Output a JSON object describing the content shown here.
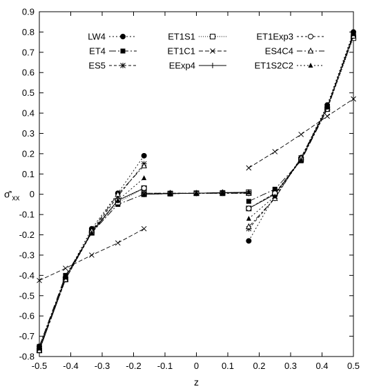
{
  "chart_data": {
    "type": "line",
    "title": "",
    "xlabel": "z",
    "ylabel": "σ̄'xx",
    "ylabel_main": "σ̄'",
    "ylabel_sub": "xx",
    "xlim": [
      -0.5,
      0.5
    ],
    "ylim": [
      -0.8,
      0.9
    ],
    "xticks": [
      "-0.5",
      "-0.4",
      "-0.3",
      "-0.2",
      "-0.1",
      "0",
      "0.1",
      "0.2",
      "0.3",
      "0.4",
      "0.5"
    ],
    "yticks": [
      "-0.8",
      "-0.7",
      "-0.6",
      "-0.5",
      "-0.4",
      "-0.3",
      "-0.2",
      "-0.1",
      "0",
      "0.1",
      "0.2",
      "0.3",
      "0.4",
      "0.5",
      "0.6",
      "0.7",
      "0.8",
      "0.9"
    ],
    "grid": false,
    "legend_position": "top",
    "series": [
      {
        "name": "LW4",
        "marker": "filled-circle",
        "dash": "2,3",
        "segments": [
          [
            [
              -0.5,
              -0.75
            ],
            [
              -0.4167,
              -0.41
            ],
            [
              -0.3333,
              -0.17
            ],
            [
              -0.25,
              0.005
            ],
            [
              -0.1667,
              0.19
            ]
          ],
          [
            [
              -0.1667,
              0.0
            ],
            [
              -0.0833,
              0.005
            ],
            [
              0,
              0.005
            ],
            [
              0.0833,
              0.008
            ],
            [
              0.1667,
              0.01
            ]
          ],
          [
            [
              0.1667,
              -0.23
            ],
            [
              0.25,
              -0.005
            ],
            [
              0.3333,
              0.18
            ],
            [
              0.4167,
              0.44
            ],
            [
              0.5,
              0.8
            ]
          ]
        ]
      },
      {
        "name": "ET4",
        "marker": "filled-square",
        "dash": "10,3,2,3",
        "segments": [
          [
            [
              -0.5,
              -0.75
            ],
            [
              -0.4167,
              -0.4
            ],
            [
              -0.3333,
              -0.19
            ],
            [
              -0.25,
              -0.05
            ],
            [
              -0.1667,
              0.0
            ]
          ],
          [
            [
              -0.1667,
              0.0
            ],
            [
              -0.0833,
              0.003
            ],
            [
              0,
              0.005
            ],
            [
              0.0833,
              0.005
            ],
            [
              0.1667,
              0.005
            ]
          ],
          [
            [
              0.1667,
              -0.035
            ],
            [
              0.25,
              0.025
            ],
            [
              0.3333,
              0.165
            ],
            [
              0.4167,
              0.42
            ],
            [
              0.5,
              0.79
            ]
          ]
        ]
      },
      {
        "name": "ES5",
        "marker": "star",
        "dash": "4,3",
        "segments": [
          [
            [
              -0.5,
              -0.77
            ],
            [
              -0.4167,
              -0.42
            ],
            [
              -0.3333,
              -0.185
            ],
            [
              -0.25,
              -0.01
            ],
            [
              -0.1667,
              0.15
            ]
          ],
          [
            [
              -0.1667,
              0.005
            ],
            [
              -0.0833,
              0.005
            ],
            [
              0,
              0.005
            ],
            [
              0.0833,
              0.008
            ],
            [
              0.1667,
              0.005
            ]
          ],
          [
            [
              0.1667,
              -0.17
            ],
            [
              0.25,
              -0.02
            ],
            [
              0.3333,
              0.18
            ],
            [
              0.4167,
              0.43
            ],
            [
              0.5,
              0.78
            ]
          ]
        ]
      },
      {
        "name": "ET1S1",
        "marker": "open-square",
        "dash": "1,2",
        "segments": [
          [
            [
              -0.5,
              -0.77
            ],
            [
              -0.4167,
              -0.42
            ],
            [
              -0.3333,
              -0.19
            ],
            [
              -0.25,
              -0.04
            ],
            [
              -0.1667,
              0.03
            ]
          ],
          [
            [
              -0.1667,
              0.0
            ],
            [
              -0.0833,
              0.003
            ],
            [
              0,
              0.005
            ],
            [
              0.0833,
              0.005
            ],
            [
              0.1667,
              0.01
            ]
          ],
          [
            [
              0.1667,
              -0.07
            ],
            [
              0.25,
              0.005
            ],
            [
              0.3333,
              0.17
            ],
            [
              0.4167,
              0.42
            ],
            [
              0.5,
              0.77
            ]
          ]
        ]
      },
      {
        "name": "ET1C1",
        "marker": "x",
        "dash": "6,3",
        "segments": [
          [
            [
              -0.5,
              -0.425
            ],
            [
              -0.4167,
              -0.365
            ],
            [
              -0.3333,
              -0.3
            ],
            [
              -0.25,
              -0.24
            ],
            [
              -0.1667,
              -0.17
            ]
          ],
          [
            [
              0.1667,
              0.13
            ],
            [
              0.25,
              0.21
            ],
            [
              0.3333,
              0.295
            ],
            [
              0.4167,
              0.385
            ],
            [
              0.5,
              0.47
            ]
          ]
        ]
      },
      {
        "name": "EExp4",
        "marker": "plus",
        "dash": "",
        "segments": [
          [
            [
              -0.5,
              -0.76
            ],
            [
              -0.4167,
              -0.41
            ],
            [
              -0.3333,
              -0.185
            ],
            [
              -0.25,
              -0.03
            ],
            [
              -0.1667,
              0.03
            ]
          ],
          [
            [
              -0.1667,
              0.0
            ],
            [
              -0.0833,
              0.003
            ],
            [
              0,
              0.005
            ],
            [
              0.0833,
              0.008
            ],
            [
              0.1667,
              0.01
            ]
          ],
          [
            [
              0.1667,
              -0.07
            ],
            [
              0.25,
              0.0
            ],
            [
              0.3333,
              0.17
            ],
            [
              0.4167,
              0.43
            ],
            [
              0.5,
              0.79
            ]
          ]
        ]
      },
      {
        "name": "ET1Exp3",
        "marker": "open-circle",
        "dash": "3,3",
        "segments": [
          [
            [
              -0.5,
              -0.77
            ],
            [
              -0.4167,
              -0.42
            ],
            [
              -0.3333,
              -0.19
            ],
            [
              -0.25,
              -0.03
            ],
            [
              -0.1667,
              0.03
            ]
          ],
          [
            [
              -0.1667,
              0.0
            ],
            [
              -0.0833,
              0.003
            ],
            [
              0,
              0.005
            ],
            [
              0.0833,
              0.005
            ],
            [
              0.1667,
              0.005
            ]
          ],
          [
            [
              0.1667,
              -0.07
            ],
            [
              0.25,
              0.005
            ],
            [
              0.3333,
              0.17
            ],
            [
              0.4167,
              0.42
            ],
            [
              0.5,
              0.78
            ]
          ]
        ]
      },
      {
        "name": "ES4C4",
        "marker": "open-triangle",
        "dash": "8,3,2,3",
        "segments": [
          [
            [
              -0.5,
              -0.77
            ],
            [
              -0.4167,
              -0.42
            ],
            [
              -0.3333,
              -0.18
            ],
            [
              -0.25,
              0.0
            ],
            [
              -0.1667,
              0.14
            ]
          ],
          [
            [
              -0.1667,
              0.005
            ],
            [
              -0.0833,
              0.005
            ],
            [
              0,
              0.005
            ],
            [
              0.0833,
              0.008
            ],
            [
              0.1667,
              0.005
            ]
          ],
          [
            [
              0.1667,
              -0.16
            ],
            [
              0.25,
              -0.02
            ],
            [
              0.3333,
              0.18
            ],
            [
              0.4167,
              0.43
            ],
            [
              0.5,
              0.78
            ]
          ]
        ]
      },
      {
        "name": "ET1S2C2",
        "marker": "filled-triangle",
        "dash": "2,3",
        "segments": [
          [
            [
              -0.5,
              -0.76
            ],
            [
              -0.4167,
              -0.41
            ],
            [
              -0.3333,
              -0.19
            ],
            [
              -0.25,
              -0.03
            ],
            [
              -0.1667,
              0.08
            ]
          ],
          [
            [
              -0.1667,
              0.0
            ],
            [
              -0.0833,
              0.003
            ],
            [
              0,
              0.005
            ],
            [
              0.0833,
              0.005
            ],
            [
              0.1667,
              0.01
            ]
          ],
          [
            [
              0.1667,
              -0.12
            ],
            [
              0.25,
              -0.01
            ],
            [
              0.3333,
              0.17
            ],
            [
              0.4167,
              0.43
            ],
            [
              0.5,
              0.79
            ]
          ]
        ]
      }
    ]
  }
}
